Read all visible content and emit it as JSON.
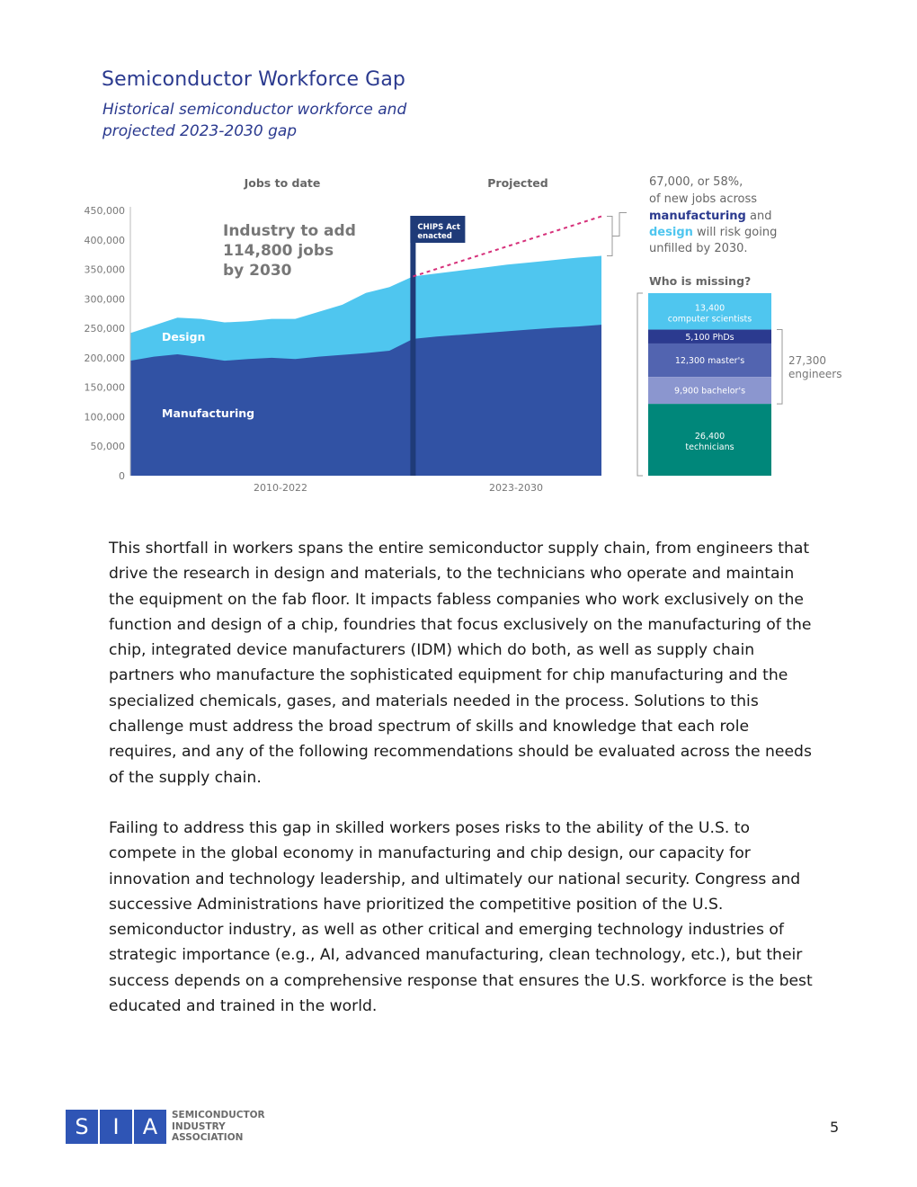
{
  "title": "Semiconductor Workforce Gap",
  "subtitle": "Historical semiconductor workforce and projected 2023-2030 gap",
  "chart_data": {
    "type": "area",
    "section_labels": {
      "historical": "Jobs to date",
      "projected": "Projected"
    },
    "x_category_labels": [
      "2010-2022",
      "2023-2030"
    ],
    "y_ticks": [
      0,
      50000,
      100000,
      150000,
      200000,
      250000,
      300000,
      350000,
      400000,
      450000
    ],
    "y_tick_labels": [
      "0",
      "50,000",
      "100,000",
      "150,000",
      "200,000",
      "250,000",
      "300,000",
      "350,000",
      "400,000",
      "450,000"
    ],
    "ylim": [
      0,
      450000
    ],
    "x_points": 21,
    "historical_point_count": 13,
    "series": [
      {
        "name": "Manufacturing",
        "color": "#3152a4",
        "values": [
          195000,
          202000,
          206000,
          201000,
          195000,
          198000,
          200000,
          198000,
          202000,
          205000,
          208000,
          212000,
          232000,
          236000,
          239000,
          242000,
          245000,
          248000,
          251000,
          253000,
          256000
        ]
      },
      {
        "name": "Design",
        "color": "#4fc6ef",
        "total_values": [
          242000,
          255000,
          268000,
          266000,
          260000,
          262000,
          266000,
          266000,
          278000,
          290000,
          310000,
          320000,
          338000,
          343000,
          348000,
          353000,
          358000,
          362000,
          366000,
          370000,
          373000
        ]
      }
    ],
    "demand_line": {
      "from": 338000,
      "to": 440000,
      "color": "#d6307a"
    },
    "annotation_headline": "Industry to add 114,800 jobs by 2030",
    "chips_act_label": [
      "CHIPS Act",
      "enacted"
    ],
    "gap_note": {
      "line1": "67,000, or 58%,",
      "line2": "of new jobs across",
      "manufacturing_word": "manufacturing",
      "and_word": "and",
      "design_word": "design",
      "line3_rest": "will risk going",
      "line4": "unfilled by 2030."
    },
    "breakdown_title": "Who is missing?",
    "breakdown": [
      {
        "count": "13,400",
        "label": "computer scientists",
        "value": 13400,
        "color": "#4fc6ef"
      },
      {
        "count": "",
        "label": "5,100 PhDs",
        "value": 5100,
        "color": "#2b3a8f"
      },
      {
        "count": "",
        "label": "12,300 master's",
        "value": 12300,
        "color": "#5264b0"
      },
      {
        "count": "",
        "label": "9,900 bachelor's",
        "value": 9900,
        "color": "#8b96cf"
      },
      {
        "count": "26,400",
        "label": "technicians",
        "value": 26400,
        "color": "#00877a"
      }
    ],
    "engineers_bracket": {
      "value": "27,300",
      "label": "engineers"
    }
  },
  "paragraphs": [
    "This shortfall in workers spans the entire semiconductor supply chain, from engineers that drive the research in design and materials, to the technicians who operate and maintain the equipment on the fab floor. It impacts fabless companies who work exclusively on the function and design of a chip, foundries that focus exclusively on the manufacturing of the chip, integrated device manufacturers (IDM) which do both, as well as supply chain partners who manufacture the sophisticated equipment for chip manufacturing and the specialized chemicals, gases, and materials needed in the process. Solutions to this challenge must address the broad spectrum of skills and knowledge that each role requires, and any of the following recommendations should be evaluated across the needs of the supply chain.",
    "Failing to address this gap in skilled workers poses risks to the ability of the U.S. to compete in the global economy in manufacturing and chip design, our capacity for innovation and technology leadership, and ultimately our national security. Congress and successive Administrations have prioritized the competitive position of the U.S. semiconductor industry, as well as other critical and emerging technology industries of strategic importance (e.g., AI, advanced manufacturing, clean technology, etc.), but their success depends on a comprehensive response that ensures the U.S. workforce is the best educated and trained in the world."
  ],
  "footer": {
    "logo_letters": [
      "S",
      "I",
      "A"
    ],
    "logo_lines": [
      "SEMICONDUCTOR",
      "INDUSTRY",
      "ASSOCIATION"
    ],
    "page_number": "5"
  }
}
